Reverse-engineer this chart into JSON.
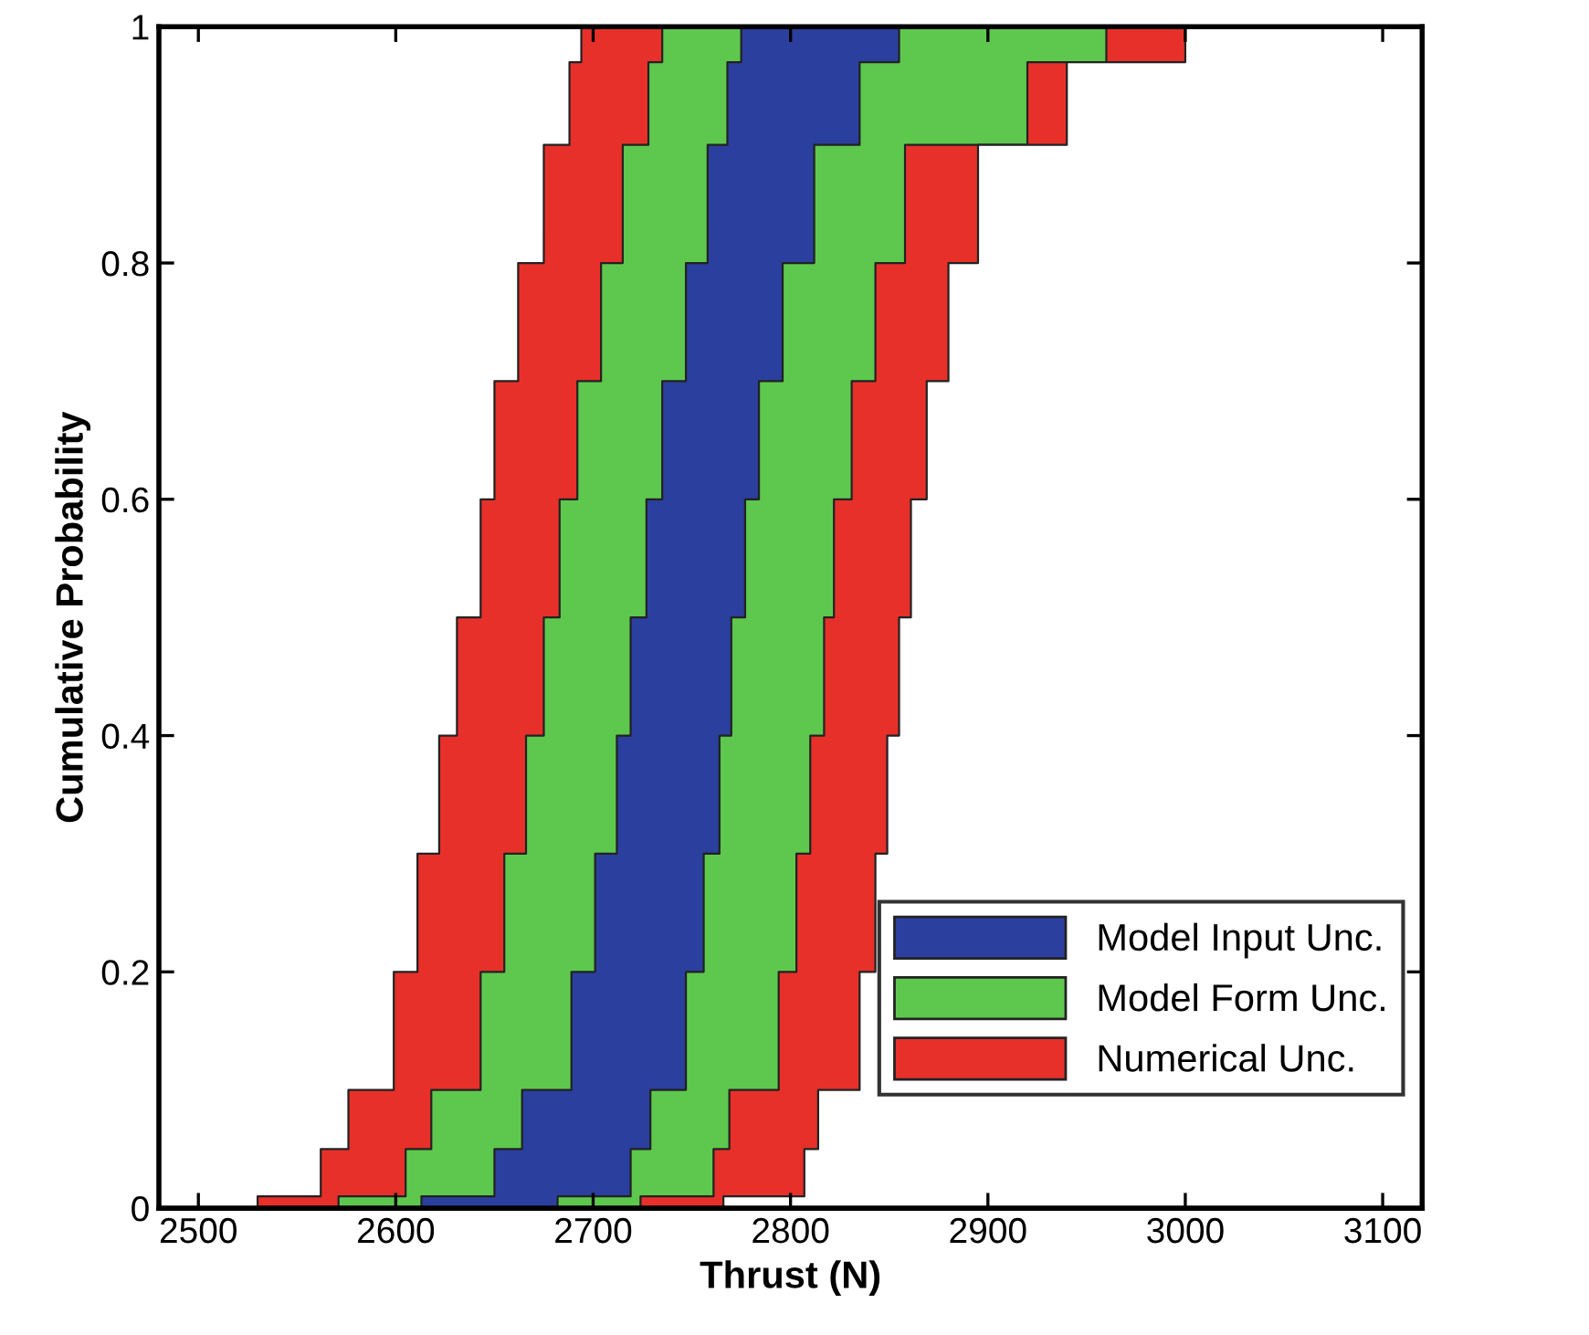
{
  "chart_data": {
    "type": "area",
    "xlabel": "Thrust (N)",
    "ylabel": "Cumulative Probability",
    "series": [
      {
        "name": "Numerical Unc.",
        "color": "#e8302a",
        "x": [
          2530,
          2562,
          2576,
          2599,
          2611,
          2622,
          2631,
          2643,
          2650,
          2662,
          2675,
          2688,
          2694,
          3120
        ],
        "values": [
          0.01,
          0.05,
          0.1,
          0.2,
          0.3,
          0.4,
          0.5,
          0.6,
          0.7,
          0.8,
          0.9,
          0.97,
          1,
          1
        ]
      },
      {
        "name": "Model Form Unc.",
        "color": "#5ec84e",
        "x": [
          2571,
          2605,
          2618,
          2643,
          2655,
          2666,
          2675,
          2683,
          2692,
          2704,
          2715,
          2728,
          2735,
          3120
        ],
        "values": [
          0.01,
          0.05,
          0.1,
          0.2,
          0.3,
          0.4,
          0.5,
          0.6,
          0.7,
          0.8,
          0.9,
          0.97,
          1,
          1
        ]
      },
      {
        "name": "Model Input Unc.",
        "color": "#2b3f9e",
        "x": [
          2613,
          2650,
          2664,
          2689,
          2701,
          2712,
          2719,
          2727,
          2735,
          2747,
          2758,
          2768,
          2775,
          3120
        ],
        "values": [
          0.01,
          0.05,
          0.1,
          0.2,
          0.3,
          0.4,
          0.5,
          0.6,
          0.7,
          0.8,
          0.9,
          0.97,
          1,
          1
        ]
      },
      {
        "color": "#5ec84e",
        "x": [
          2682,
          2719,
          2729,
          2747,
          2756,
          2764,
          2770,
          2777,
          2784,
          2796,
          2812,
          2835,
          2855,
          3120
        ],
        "values": [
          0.01,
          0.05,
          0.1,
          0.2,
          0.3,
          0.4,
          0.5,
          0.6,
          0.7,
          0.8,
          0.9,
          0.97,
          1,
          1
        ]
      },
      {
        "color": "#e8302a",
        "x": [
          2724,
          2761,
          2769,
          2794,
          2803,
          2810,
          2817,
          2822,
          2831,
          2843,
          2858,
          2920,
          2960,
          3120
        ],
        "values": [
          0.01,
          0.05,
          0.1,
          0.2,
          0.3,
          0.4,
          0.5,
          0.6,
          0.7,
          0.8,
          0.9,
          0.97,
          1,
          1
        ]
      },
      {
        "color": "#ffffff",
        "x": [
          2766,
          2807,
          2814,
          2835,
          2843,
          2849,
          2855,
          2861,
          2869,
          2880,
          2895,
          2940,
          3000,
          3120
        ],
        "values": [
          0.01,
          0.05,
          0.1,
          0.2,
          0.3,
          0.4,
          0.5,
          0.6,
          0.7,
          0.8,
          0.9,
          0.97,
          1,
          1
        ]
      }
    ],
    "xlim": [
      2480,
      3120
    ],
    "xticks": [
      2500,
      2600,
      2700,
      2800,
      2900,
      3000,
      3100
    ],
    "ylim": [
      0,
      1
    ],
    "yticks": [
      0,
      {
        "value": 0.2,
        "label": "0.2"
      },
      {
        "value": 0.4,
        "label": "0.4"
      },
      {
        "value": 0.6,
        "label": "0.6"
      },
      {
        "value": 0.8,
        "label": "0.8"
      },
      1
    ],
    "legend": "bottom right"
  }
}
